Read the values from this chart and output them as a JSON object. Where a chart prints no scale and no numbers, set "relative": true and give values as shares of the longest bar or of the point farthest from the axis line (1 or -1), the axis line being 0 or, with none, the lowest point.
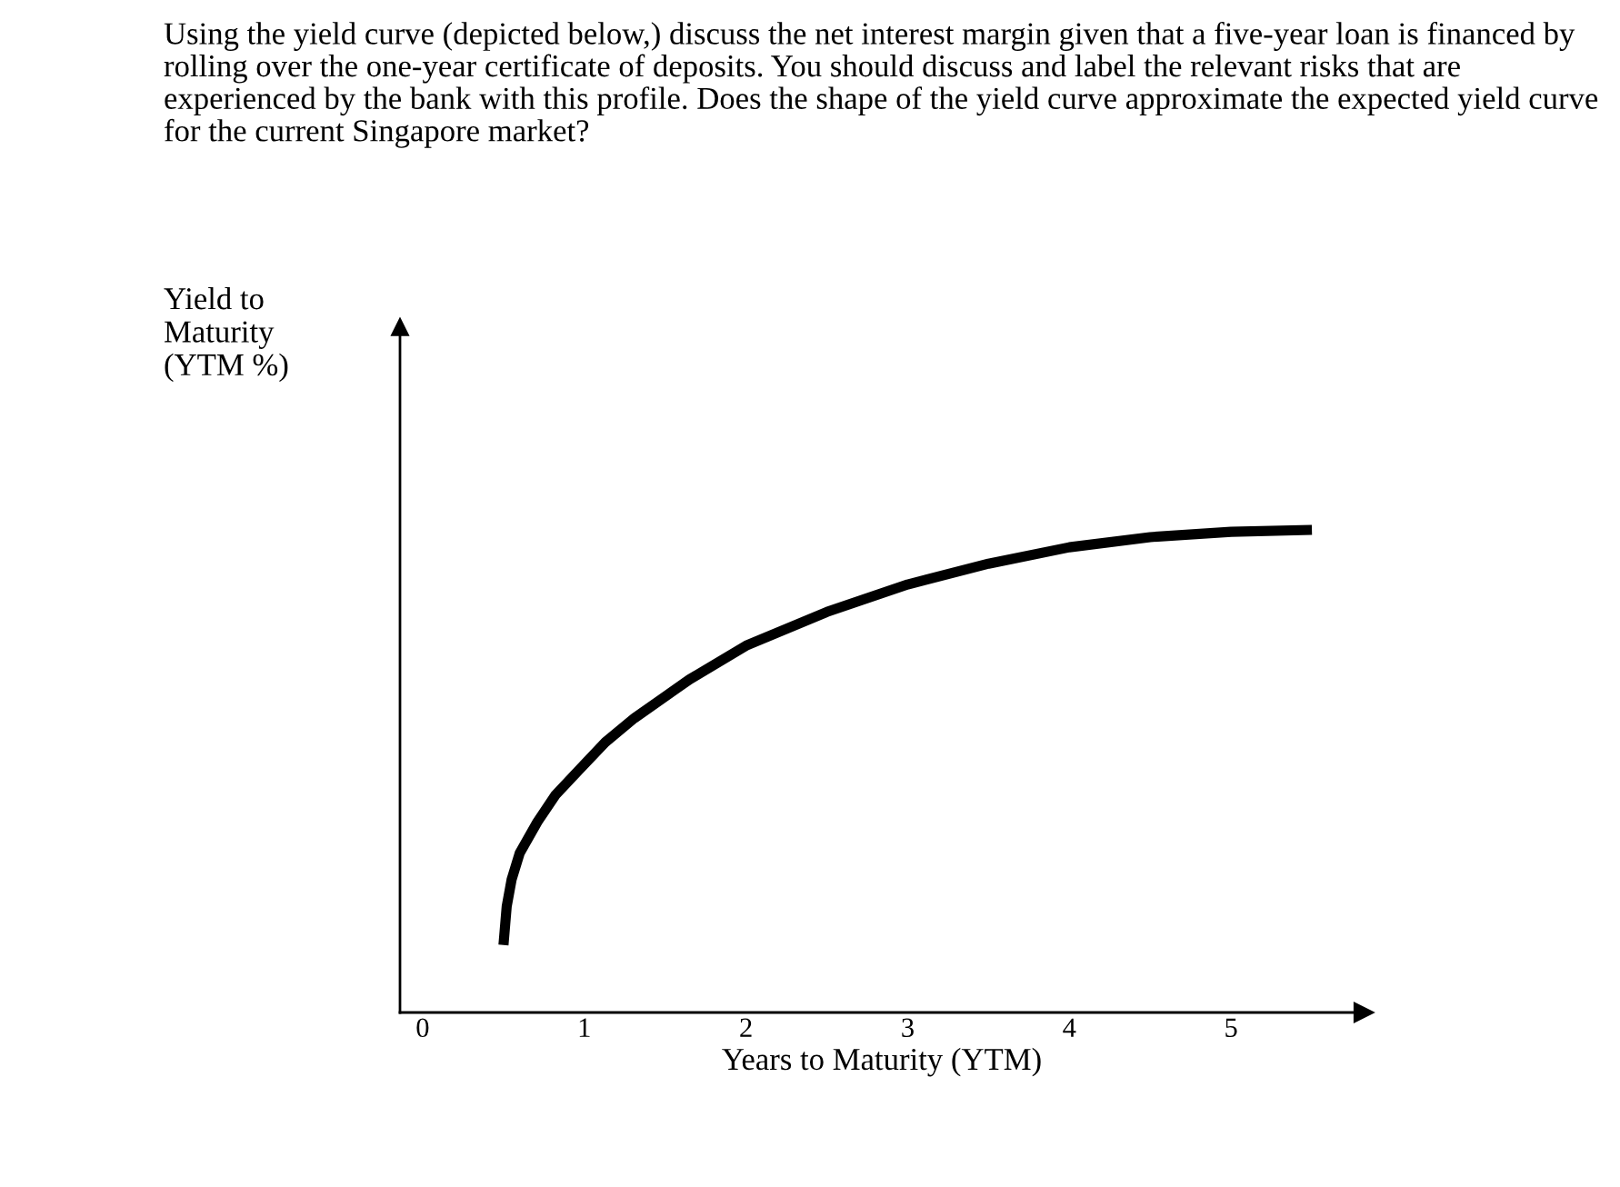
{
  "chart_data": {
    "type": "line",
    "title": "Using the yield curve (depicted below,) discuss the net interest margin given that a five-year loan is financed by rolling over the one-year certificate of deposits. You should discuss and label the relevant risks that are experienced by the bank with this profile. Does the shape of the yield curve approximate the expected yield curve for the current Singapore market?",
    "xlabel": "Years to Maturity (YTM)",
    "annotations": [
      "Yield to\nMaturity\n(YTM %)"
    ],
    "relative": true,
    "xlim": [
      -0.14,
      5.82
    ],
    "xticks": [
      0,
      1,
      2,
      3,
      4,
      5
    ],
    "grid": false,
    "marker": "none",
    "line_style": "solid",
    "series": [
      {
        "color": "#000000",
        "x": [
          0.5,
          0.52,
          0.55,
          0.6,
          0.71,
          0.82,
          0.96,
          1.13,
          1.31,
          1.65,
          2.0,
          2.5,
          3.0,
          3.5,
          4.0,
          4.5,
          5.0,
          5.5
        ],
        "values": [
          0.14,
          0.22,
          0.275,
          0.33,
          0.395,
          0.45,
          0.5,
          0.56,
          0.61,
          0.69,
          0.76,
          0.83,
          0.887,
          0.93,
          0.964,
          0.985,
          0.996,
          1.0
        ]
      }
    ]
  }
}
